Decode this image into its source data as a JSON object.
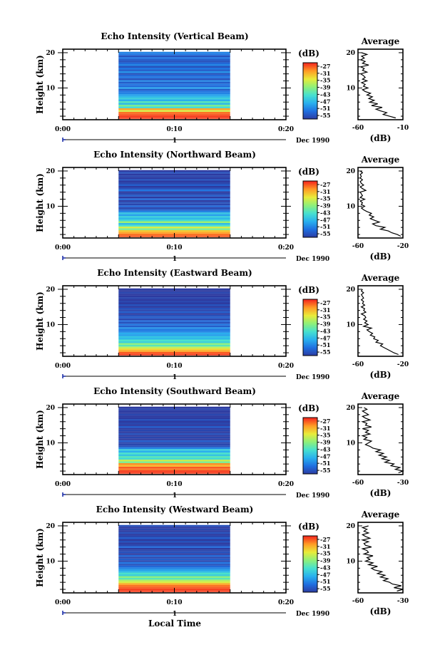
{
  "figure": {
    "xlabel": "Local Time",
    "date_label": "Dec 1990",
    "day_label": "1",
    "ylabel": "Height (km)",
    "avg_title": "Average",
    "avg_xlabel": "(dB)",
    "cbar_label": "(dB)",
    "cbar_ticks": [
      "-27",
      "-31",
      "-35",
      "-39",
      "-43",
      "-47",
      "-51",
      "-55"
    ],
    "cbar_range": [
      -57,
      -25
    ],
    "colormap": [
      "#2c3aa0",
      "#1f6fe0",
      "#2ab0ee",
      "#46e0d0",
      "#8ef07a",
      "#e8ec3a",
      "#ff9c25",
      "#f4261e"
    ],
    "time_ticks": [
      "0:00",
      "0:10",
      "0:20"
    ],
    "time_range_minutes": [
      0,
      20
    ],
    "data_time_span_minutes": [
      5,
      15
    ],
    "height_ticks": [
      "20",
      "10"
    ],
    "height_range_km": [
      1,
      21
    ]
  },
  "chart_data": [
    {
      "type": "heatmap",
      "title": "Echo Intensity (Vertical Beam)",
      "ylabel": "Height (km)",
      "xlabel": "Local Time",
      "height_km": [
        1.5,
        2.0,
        2.5,
        3.0,
        3.5,
        4.0,
        4.5,
        5.0,
        5.5,
        6.0,
        6.5,
        7.0,
        7.5,
        8.0,
        8.5,
        9.0,
        9.5,
        10.0,
        10.5,
        11.0,
        11.5,
        12.0,
        12.5,
        13.0,
        13.5,
        14.0,
        14.5,
        15.0,
        15.5,
        16.0,
        16.5,
        17.0,
        17.5,
        18.0,
        18.5,
        19.0,
        19.5,
        20.0
      ],
      "intensity_db": [
        -26,
        -26,
        -27,
        -28,
        -35,
        -30,
        -44,
        -40,
        -47,
        -42,
        -48,
        -45,
        -47,
        -49,
        -51,
        -52,
        -54,
        -49,
        -53,
        -52,
        -54,
        -51,
        -55,
        -52,
        -53,
        -55,
        -50,
        -54,
        -52,
        -55,
        -51,
        -53,
        -55,
        -54,
        -52,
        -55,
        -52,
        -51
      ]
    },
    {
      "type": "heatmap",
      "title": "Echo Intensity (Northward Beam)",
      "ylabel": "Height (km)",
      "xlabel": "Local Time",
      "height_km": [
        1.5,
        2.0,
        2.5,
        3.0,
        3.5,
        4.0,
        4.5,
        5.0,
        5.5,
        6.0,
        6.5,
        7.0,
        7.5,
        8.0,
        8.5,
        9.0,
        9.5,
        10.0,
        10.5,
        11.0,
        11.5,
        12.0,
        12.5,
        13.0,
        13.5,
        14.0,
        14.5,
        15.0,
        15.5,
        16.0,
        16.5,
        17.0,
        17.5,
        18.0,
        18.5,
        19.0,
        19.5,
        20.0
      ],
      "intensity_db": [
        -27,
        -28,
        -30,
        -32,
        -40,
        -35,
        -43,
        -47,
        -38,
        -44,
        -47,
        -45,
        -49,
        -46,
        -51,
        -54,
        -56,
        -53,
        -56,
        -55,
        -57,
        -53,
        -57,
        -54,
        -56,
        -57,
        -52,
        -55,
        -57,
        -54,
        -56,
        -57,
        -55,
        -57,
        -56,
        -57,
        -55,
        -57
      ]
    },
    {
      "type": "heatmap",
      "title": "Echo Intensity (Eastward Beam)",
      "ylabel": "Height (km)",
      "xlabel": "Local Time",
      "height_km": [
        1.5,
        2.0,
        2.5,
        3.0,
        3.5,
        4.0,
        4.5,
        5.0,
        5.5,
        6.0,
        6.5,
        7.0,
        7.5,
        8.0,
        8.5,
        9.0,
        9.5,
        10.0,
        10.5,
        11.0,
        11.5,
        12.0,
        12.5,
        13.0,
        13.5,
        14.0,
        14.5,
        15.0,
        15.5,
        16.0,
        16.5,
        17.0,
        17.5,
        18.0,
        18.5,
        19.0,
        19.5,
        20.0
      ],
      "intensity_db": [
        -26,
        -27,
        -30,
        -33,
        -36,
        -42,
        -39,
        -45,
        -43,
        -47,
        -46,
        -49,
        -48,
        -51,
        -52,
        -50,
        -54,
        -52,
        -55,
        -53,
        -56,
        -54,
        -55,
        -57,
        -54,
        -56,
        -55,
        -57,
        -55,
        -57,
        -56,
        -57,
        -56,
        -57,
        -57,
        -56,
        -57,
        -57
      ]
    },
    {
      "type": "heatmap",
      "title": "Echo Intensity (Southward Beam)",
      "ylabel": "Height (km)",
      "xlabel": "Local Time",
      "height_km": [
        1.5,
        2.0,
        2.5,
        3.0,
        3.5,
        4.0,
        4.5,
        5.0,
        5.5,
        6.0,
        6.5,
        7.0,
        7.5,
        8.0,
        8.5,
        9.0,
        9.5,
        10.0,
        10.5,
        11.0,
        11.5,
        12.0,
        12.5,
        13.0,
        13.5,
        14.0,
        14.5,
        15.0,
        15.5,
        16.0,
        16.5,
        17.0,
        17.5,
        18.0,
        18.5,
        19.0,
        19.5,
        20.0
      ],
      "intensity_db": [
        -26,
        -26,
        -28,
        -27,
        -31,
        -29,
        -40,
        -36,
        -44,
        -42,
        -46,
        -43,
        -48,
        -45,
        -51,
        -55,
        -56,
        -56,
        -54,
        -57,
        -56,
        -57,
        -55,
        -57,
        -56,
        -57,
        -54,
        -57,
        -56,
        -57,
        -55,
        -57,
        -57,
        -56,
        -57,
        -57,
        -56,
        -57
      ]
    },
    {
      "type": "heatmap",
      "title": "Echo Intensity (Westward Beam)",
      "ylabel": "Height (km)",
      "xlabel": "Local Time",
      "height_km": [
        1.5,
        2.0,
        2.5,
        3.0,
        3.5,
        4.0,
        4.5,
        5.0,
        5.5,
        6.0,
        6.5,
        7.0,
        7.5,
        8.0,
        8.5,
        9.0,
        9.5,
        10.0,
        10.5,
        11.0,
        11.5,
        12.0,
        12.5,
        13.0,
        13.5,
        14.0,
        14.5,
        15.0,
        15.5,
        16.0,
        16.5,
        17.0,
        17.5,
        18.0,
        18.5,
        19.0,
        19.5,
        20.0
      ],
      "intensity_db": [
        -26,
        -26,
        -27,
        -28,
        -30,
        -35,
        -37,
        -42,
        -39,
        -45,
        -43,
        -47,
        -49,
        -51,
        -53,
        -55,
        -52,
        -56,
        -54,
        -56,
        -53,
        -57,
        -55,
        -56,
        -57,
        -53,
        -56,
        -57,
        -55,
        -57,
        -54,
        -56,
        -57,
        -55,
        -57,
        -56,
        -57,
        -55
      ]
    },
    {
      "type": "line",
      "title": "Average",
      "xlabel": "(dB)",
      "xlim": [
        -60,
        -10
      ],
      "xticks": [
        "-60",
        "-10"
      ],
      "ylim": [
        1,
        21
      ],
      "yticks": [
        "20",
        "10"
      ],
      "height_km": [
        1.5,
        2.0,
        2.5,
        3.0,
        3.5,
        4.0,
        4.5,
        5.0,
        5.5,
        6.0,
        6.5,
        7.0,
        7.5,
        8.0,
        8.5,
        9.0,
        9.5,
        10.0,
        10.5,
        11.0,
        11.5,
        12.0,
        12.5,
        13.0,
        13.5,
        14.0,
        14.5,
        15.0,
        15.5,
        16.0,
        16.5,
        17.0,
        17.5,
        18.0,
        18.5,
        19.0,
        19.5,
        20.0
      ],
      "avg_db": [
        -18,
        -25,
        -32,
        -28,
        -35,
        -40,
        -33,
        -45,
        -38,
        -47,
        -42,
        -48,
        -44,
        -50,
        -46,
        -52,
        -55,
        -49,
        -54,
        -52,
        -56,
        -50,
        -55,
        -52,
        -54,
        -57,
        -50,
        -55,
        -53,
        -57,
        -48,
        -55,
        -52,
        -57,
        -53,
        -56,
        -50,
        -56
      ]
    },
    {
      "type": "line",
      "title": "Average",
      "xlabel": "(dB)",
      "xlim": [
        -60,
        -20
      ],
      "xticks": [
        "-60",
        "-20"
      ],
      "ylim": [
        1,
        21
      ],
      "yticks": [
        "20",
        "10"
      ],
      "height_km": [
        1.5,
        2.0,
        2.5,
        3.0,
        3.5,
        4.0,
        4.5,
        5.0,
        5.5,
        6.0,
        6.5,
        7.0,
        7.5,
        8.0,
        8.5,
        9.0,
        9.5,
        10.0,
        10.5,
        11.0,
        11.5,
        12.0,
        12.5,
        13.0,
        13.5,
        14.0,
        14.5,
        15.0,
        15.5,
        16.0,
        16.5,
        17.0,
        17.5,
        18.0,
        18.5,
        19.0,
        19.5,
        20.0
      ],
      "avg_db": [
        -22,
        -25,
        -30,
        -33,
        -40,
        -36,
        -44,
        -47,
        -41,
        -45,
        -49,
        -46,
        -50,
        -48,
        -52,
        -55,
        -57,
        -54,
        -57,
        -56,
        -58,
        -54,
        -58,
        -56,
        -57,
        -58,
        -53,
        -56,
        -58,
        -55,
        -57,
        -58,
        -56,
        -58,
        -57,
        -58,
        -56,
        -58
      ]
    },
    {
      "type": "line",
      "title": "Average",
      "xlabel": "(dB)",
      "xlim": [
        -60,
        -20
      ],
      "xticks": [
        "-60",
        "-20"
      ],
      "ylim": [
        1,
        21
      ],
      "yticks": [
        "20",
        "10"
      ],
      "height_km": [
        1.5,
        2.0,
        2.5,
        3.0,
        3.5,
        4.0,
        4.5,
        5.0,
        5.5,
        6.0,
        6.5,
        7.0,
        7.5,
        8.0,
        8.5,
        9.0,
        9.5,
        10.0,
        10.5,
        11.0,
        11.5,
        12.0,
        12.5,
        13.0,
        13.5,
        14.0,
        14.5,
        15.0,
        15.5,
        16.0,
        16.5,
        17.0,
        17.5,
        18.0,
        18.5,
        19.0,
        19.5,
        20.0
      ],
      "avg_db": [
        -24,
        -28,
        -31,
        -34,
        -37,
        -40,
        -38,
        -44,
        -42,
        -46,
        -45,
        -49,
        -47,
        -50,
        -52,
        -48,
        -55,
        -51,
        -54,
        -52,
        -55,
        -53,
        -54,
        -57,
        -53,
        -55,
        -54,
        -57,
        -54,
        -56,
        -55,
        -57,
        -55,
        -56,
        -57,
        -55,
        -57,
        -56
      ]
    },
    {
      "type": "line",
      "title": "Average",
      "xlabel": "(dB)",
      "xlim": [
        -60,
        -30
      ],
      "xticks": [
        "-60",
        "-30"
      ],
      "ylim": [
        1,
        21
      ],
      "yticks": [
        "20",
        "10"
      ],
      "height_km": [
        1.5,
        2.0,
        2.5,
        3.0,
        3.5,
        4.0,
        4.5,
        5.0,
        5.5,
        6.0,
        6.5,
        7.0,
        7.5,
        8.0,
        8.5,
        9.0,
        9.5,
        10.0,
        10.5,
        11.0,
        11.5,
        12.0,
        12.5,
        13.0,
        13.5,
        14.0,
        14.5,
        15.0,
        15.5,
        16.0,
        16.5,
        17.0,
        17.5,
        18.0,
        18.5,
        19.0,
        19.5,
        20.0
      ],
      "avg_db": [
        -33,
        -30,
        -35,
        -32,
        -38,
        -36,
        -42,
        -39,
        -44,
        -41,
        -46,
        -43,
        -48,
        -45,
        -50,
        -52,
        -55,
        -53,
        -51,
        -56,
        -54,
        -57,
        -52,
        -55,
        -53,
        -57,
        -51,
        -55,
        -54,
        -57,
        -52,
        -55,
        -57,
        -53,
        -55,
        -57,
        -54,
        -56
      ]
    },
    {
      "type": "line",
      "title": "Average",
      "xlabel": "(dB)",
      "xlim": [
        -60,
        -30
      ],
      "xticks": [
        "-60",
        "-30"
      ],
      "ylim": [
        1,
        21
      ],
      "yticks": [
        "20",
        "10"
      ],
      "height_km": [
        1.5,
        2.0,
        2.5,
        3.0,
        3.5,
        4.0,
        4.5,
        5.0,
        5.5,
        6.0,
        6.5,
        7.0,
        7.5,
        8.0,
        8.5,
        9.0,
        9.5,
        10.0,
        10.5,
        11.0,
        11.5,
        12.0,
        12.5,
        13.0,
        13.5,
        14.0,
        14.5,
        15.0,
        15.5,
        16.0,
        16.5,
        17.0,
        17.5,
        18.0,
        18.5,
        19.0,
        19.5,
        20.0
      ],
      "avg_db": [
        -34,
        -30,
        -36,
        -31,
        -37,
        -39,
        -43,
        -40,
        -45,
        -42,
        -47,
        -44,
        -49,
        -51,
        -47,
        -53,
        -50,
        -55,
        -52,
        -54,
        -50,
        -56,
        -53,
        -54,
        -57,
        -51,
        -55,
        -56,
        -53,
        -57,
        -52,
        -55,
        -57,
        -53,
        -56,
        -54,
        -57,
        -53
      ]
    }
  ]
}
